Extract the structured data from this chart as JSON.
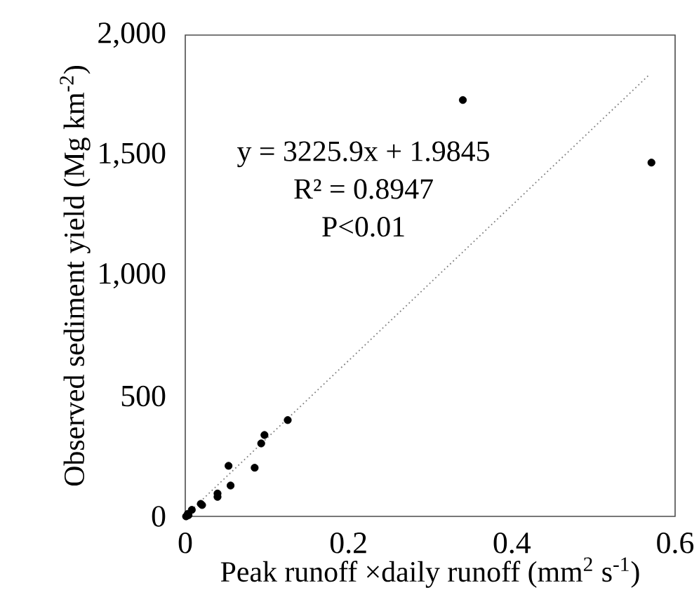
{
  "chart_data": {
    "type": "scatter",
    "xlabel": "Peak runoff ×daily runoff (mm$^{2}$ s$^{-1}$)",
    "ylabel": "Observed sediment yield (Mg km$^{-2}$)",
    "annotations": [
      "y = 3225.9x + 1.9845",
      "R² = 0.8947",
      "P<0.01"
    ],
    "xlim": [
      0,
      0.6
    ],
    "ylim": [
      0,
      2000
    ],
    "xticks": [
      0,
      0.2,
      0.4,
      0.6
    ],
    "yticks": [
      0,
      500,
      {
        "value": 1000,
        "label": "1,000"
      },
      {
        "value": 1500,
        "label": "1,500"
      },
      {
        "value": 2000,
        "label": "2,000"
      }
    ],
    "grid": false,
    "marker": "circle",
    "series": [
      {
        "type": "scatter",
        "color": "#000000",
        "x": [
          0.34,
          0.571,
          0.1255,
          0.097,
          0.093,
          0.053,
          0.085,
          0.0555,
          0.0395,
          0.0395,
          0.0206,
          0.019,
          0.008,
          0.003,
          0.001,
          0.004
        ],
        "values": [
          1730,
          1470,
          400,
          338,
          303,
          210,
          202,
          128,
          95,
          81,
          47,
          52,
          27,
          10,
          0,
          5
        ]
      },
      {
        "type": "line",
        "color": "#808080",
        "line_style": "dotted",
        "marker": "none",
        "x": [
          0,
          0.568
        ],
        "values": [
          2,
          1834
        ]
      }
    ]
  }
}
